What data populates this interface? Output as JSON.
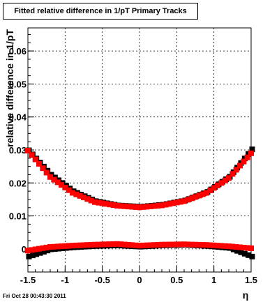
{
  "chart_data": {
    "type": "scatter",
    "title": "Fitted relative difference in 1/pT  Primary Tracks",
    "xlabel": "η",
    "ylabel": "relative difference in 1/pT",
    "xlim": [
      -1.5,
      1.5
    ],
    "ylim": [
      -0.007,
      0.067
    ],
    "grid": true,
    "x_ticks": [
      "-1.5",
      "-1",
      "-0.5",
      "0",
      "0.5",
      "1",
      "1.5"
    ],
    "y_ticks": [
      "0",
      "0.01",
      "0.02",
      "0.03",
      "0.04",
      "0.05",
      "0.06"
    ],
    "series": [
      {
        "color": "#000000",
        "x": [
          -1.5,
          -1.2,
          -0.9,
          -0.6,
          -0.3,
          0,
          0.3,
          0.6,
          0.9,
          1.2,
          1.5
        ],
        "y": [
          0.0302,
          0.0228,
          0.0178,
          0.0148,
          0.0135,
          0.0131,
          0.0137,
          0.015,
          0.0176,
          0.0222,
          0.0305
        ]
      },
      {
        "color": "#ff0000",
        "x": [
          -1.5,
          -1.2,
          -0.9,
          -0.6,
          -0.3,
          0,
          0.3,
          0.6,
          0.9,
          1.2,
          1.5
        ],
        "y": [
          0.0298,
          0.0218,
          0.017,
          0.0142,
          0.0131,
          0.0126,
          0.0132,
          0.0145,
          0.017,
          0.0215,
          0.029
        ]
      },
      {
        "color": "#000000",
        "x": [
          -1.5,
          -1.2,
          -0.9,
          -0.6,
          -0.3,
          0,
          0.3,
          0.6,
          0.9,
          1.2,
          1.5
        ],
        "y": [
          -0.002,
          0.0002,
          0.0008,
          0.0012,
          0.0014,
          0.001,
          0.0014,
          0.0016,
          0.0012,
          0.0006,
          -0.002
        ]
      },
      {
        "color": "#ff0000",
        "x": [
          -1.5,
          -1.2,
          -0.9,
          -0.6,
          -0.3,
          0,
          0.3,
          0.6,
          0.9,
          1.2,
          1.5
        ],
        "y": [
          -0.0005,
          0.0006,
          0.001,
          0.0013,
          0.0015,
          0.001,
          0.0013,
          0.0014,
          0.0012,
          0.0008,
          0.0002
        ]
      }
    ]
  },
  "footer": {
    "timestamp": "Fri Oct 28 00:43:30 2011"
  }
}
